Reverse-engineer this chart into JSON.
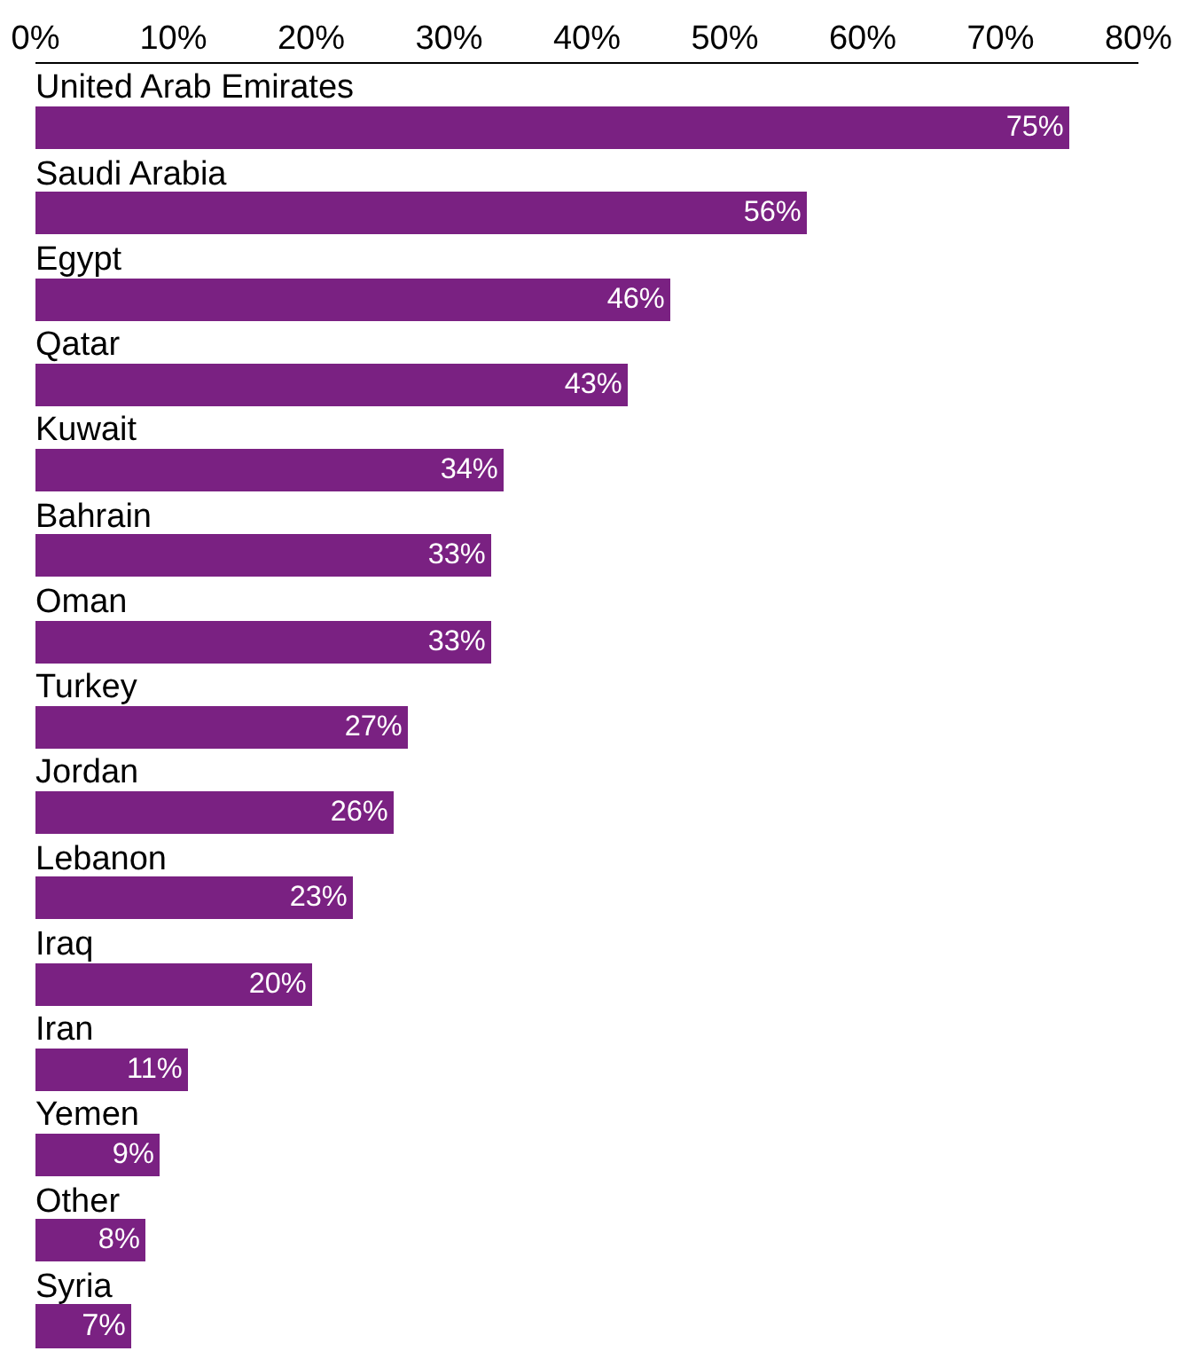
{
  "chart_data": {
    "type": "bar",
    "orientation": "horizontal",
    "categories": [
      "United Arab Emirates",
      "Saudi Arabia",
      "Egypt",
      "Qatar",
      "Kuwait",
      "Bahrain",
      "Oman",
      "Turkey",
      "Jordan",
      "Lebanon",
      "Iraq",
      "Iran",
      "Yemen",
      "Other",
      "Syria"
    ],
    "values": [
      75,
      56,
      46,
      43,
      34,
      33,
      33,
      27,
      26,
      23,
      20,
      11,
      9,
      8,
      7
    ],
    "value_labels": [
      "75%",
      "56%",
      "46%",
      "43%",
      "34%",
      "33%",
      "33%",
      "27%",
      "26%",
      "23%",
      "20%",
      "11%",
      "9%",
      "8%",
      "7%"
    ],
    "color": "#7a2182",
    "xlim": [
      0,
      80
    ],
    "xticks": [
      {
        "value": 0,
        "label": "0%"
      },
      {
        "value": 10,
        "label": "10%"
      },
      {
        "value": 20,
        "label": "20%"
      },
      {
        "value": 30,
        "label": "30%"
      },
      {
        "value": 40,
        "label": "40%"
      },
      {
        "value": 50,
        "label": "50%"
      },
      {
        "value": 60,
        "label": "60%"
      },
      {
        "value": 70,
        "label": "70%"
      },
      {
        "value": 80,
        "label": "80%"
      }
    ],
    "legend": false
  }
}
